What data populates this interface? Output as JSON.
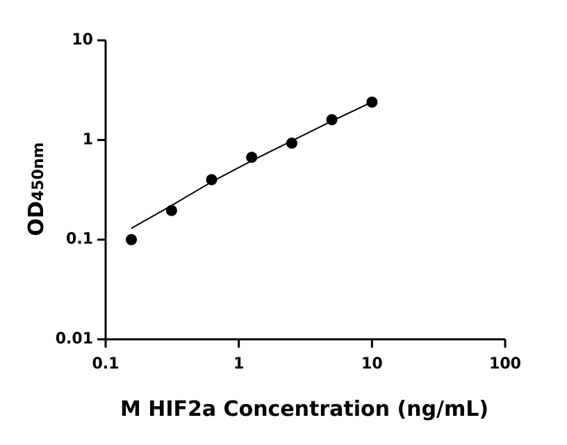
{
  "chart_data": {
    "type": "scatter",
    "xlabel": "M HIF2a Concentration (ng/mL)",
    "ylabel": "OD",
    "ylabel_sub": "450nm",
    "xscale": "log",
    "yscale": "log",
    "xlim": [
      0.1,
      100
    ],
    "xticks": [
      0.1,
      1,
      10,
      100
    ],
    "ylim": [
      0.01,
      10
    ],
    "yticks": [
      0.01,
      0.1,
      1,
      10
    ],
    "series": [
      {
        "x": [
          0.156,
          0.3125,
          0.625,
          1.25,
          2.5,
          5,
          10
        ],
        "values": [
          0.1,
          0.196,
          0.4,
          0.67,
          0.93,
          1.6,
          2.4
        ],
        "color": "#000000",
        "mark": "point"
      },
      {
        "x": [
          0.156,
          0.3125,
          0.625,
          1.25,
          2.5,
          5,
          10
        ],
        "values": [
          0.13,
          0.22,
          0.38,
          0.62,
          0.98,
          1.55,
          2.4
        ],
        "color": "#000000",
        "mark": "line"
      }
    ]
  }
}
